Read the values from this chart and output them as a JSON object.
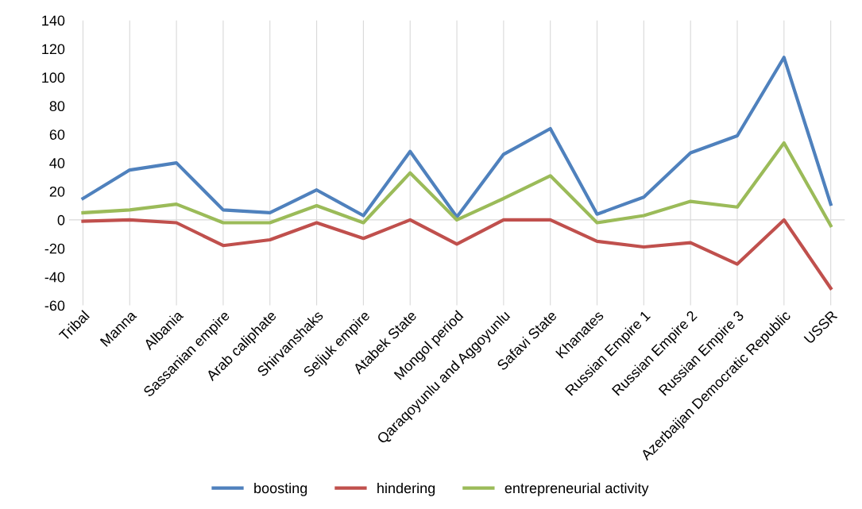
{
  "chart_data": {
    "type": "line",
    "categories": [
      "Tribal",
      "Manna",
      "Albania",
      "Sassanian empire",
      "Arab caliphate",
      "Shirvanshaks",
      "Seljuk empire",
      "Atabek State",
      "Mongol period",
      "Qaraqoyunlu and Aggoyunlu",
      "Safavi State",
      "Khanates",
      "Russian Empire 1",
      "Russian Empire 2",
      "Russian Empire 3",
      "Azerbaijan Democratic Republic",
      "USSR"
    ],
    "series": [
      {
        "name": "boosting",
        "color": "#4f81bd",
        "values": [
          15,
          35,
          40,
          7,
          5,
          21,
          3,
          48,
          2,
          46,
          64,
          4,
          16,
          47,
          59,
          114,
          11
        ]
      },
      {
        "name": "hindering",
        "color": "#c0504d",
        "values": [
          -1,
          0,
          -2,
          -18,
          -14,
          -2,
          -13,
          0,
          -17,
          0,
          0,
          -15,
          -19,
          -16,
          -31,
          0,
          -48
        ]
      },
      {
        "name": "entrepreneurial activity",
        "color": "#9bbb59",
        "values": [
          5,
          7,
          11,
          -2,
          -2,
          10,
          -2,
          33,
          0,
          15,
          31,
          -2,
          3,
          13,
          9,
          54,
          -4
        ]
      }
    ],
    "ylim": [
      -60,
      140
    ],
    "yticks": [
      -60,
      -40,
      -20,
      0,
      20,
      40,
      60,
      80,
      100,
      120,
      140
    ],
    "grid": "x",
    "legend": "bottom",
    "marker": "none",
    "line_style": "solid"
  }
}
